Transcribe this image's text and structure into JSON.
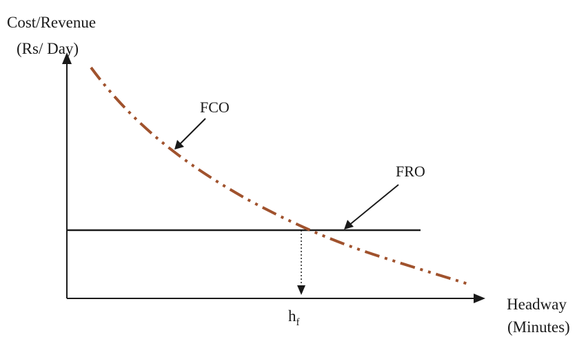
{
  "y_axis": {
    "line1": "Cost/Revenue",
    "line2": "(Rs/ Day)"
  },
  "x_axis": {
    "line1": "Headway",
    "line2": "(Minutes)"
  },
  "curves": {
    "fco": {
      "label": "FCO",
      "color": "#a0522d"
    },
    "fro": {
      "label": "FRO",
      "color": "#1a1a1a"
    }
  },
  "intersection_marker": {
    "base": "h",
    "subscript": "f"
  }
}
